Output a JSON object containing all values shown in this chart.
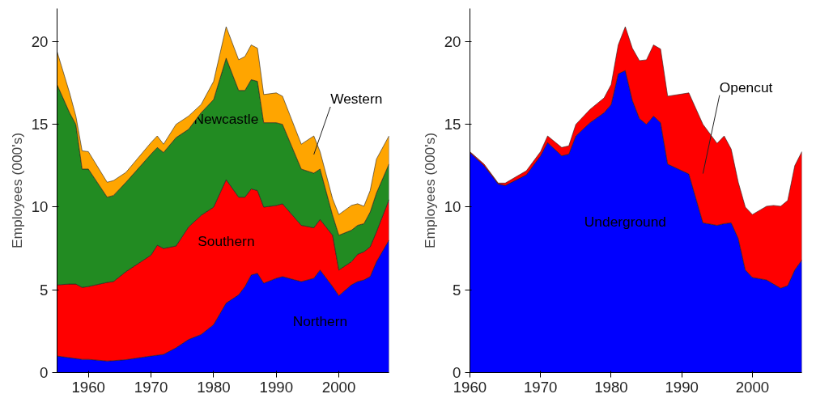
{
  "chart_data": [
    {
      "type": "area",
      "stacked": true,
      "ylabel": "Employees (000's)",
      "grid": false,
      "x": [
        1955,
        1957,
        1958,
        1959,
        1960,
        1963,
        1964,
        1966,
        1970,
        1971,
        1972,
        1974,
        1976,
        1978,
        1980,
        1982,
        1984,
        1985,
        1986,
        1987,
        1988,
        1990,
        1991,
        1994,
        1996,
        1997,
        1999,
        2000,
        2002,
        2003,
        2004,
        2005,
        2006,
        2008
      ],
      "xlim": [
        1955,
        2008
      ],
      "xticks": [
        1960,
        1970,
        1980,
        1990,
        2000
      ],
      "ylim": [
        0,
        22
      ],
      "yticks": [
        0,
        5,
        10,
        15,
        20
      ],
      "series": [
        {
          "name": "Northern",
          "color": "#0000ff",
          "values": [
            1.0,
            0.9,
            0.85,
            0.8,
            0.8,
            0.7,
            0.72,
            0.78,
            1.0,
            1.05,
            1.1,
            1.5,
            2.0,
            2.3,
            2.9,
            4.2,
            4.7,
            5.2,
            5.9,
            6.0,
            5.4,
            5.7,
            5.8,
            5.5,
            5.7,
            6.2,
            5.2,
            4.65,
            5.3,
            5.5,
            5.6,
            5.8,
            6.7,
            8.0
          ]
        },
        {
          "name": "Southern",
          "color": "#ff0000",
          "values": [
            4.3,
            4.45,
            4.5,
            4.35,
            4.4,
            4.75,
            4.78,
            5.32,
            6.1,
            6.65,
            6.4,
            6.15,
            6.8,
            7.2,
            7.1,
            7.46,
            5.9,
            5.4,
            5.2,
            5.0,
            4.6,
            4.4,
            4.4,
            3.4,
            3.05,
            3.05,
            3.1,
            1.55,
            1.4,
            1.65,
            1.7,
            1.8,
            1.8,
            2.45
          ]
        },
        {
          "name": "Newcastle",
          "color": "#228b22",
          "values": [
            12.1,
            10.35,
            9.65,
            7.15,
            7.1,
            5.15,
            5.2,
            5.4,
            6.1,
            5.9,
            5.8,
            6.55,
            5.9,
            6.2,
            6.5,
            7.34,
            6.45,
            6.45,
            6.6,
            6.6,
            5.1,
            5.0,
            4.8,
            3.4,
            3.3,
            3.05,
            1.2,
            2.1,
            1.9,
            1.75,
            1.7,
            2.1,
            2.35,
            2.15
          ]
        },
        {
          "name": "Western",
          "color": "#ffa500",
          "values": [
            2.0,
            1.2,
            0.5,
            1.1,
            1.05,
            0.9,
            0.9,
            0.6,
            0.7,
            0.7,
            0.5,
            0.8,
            0.8,
            0.5,
            1.1,
            1.9,
            1.85,
            2.05,
            2.1,
            2.0,
            1.7,
            1.8,
            1.7,
            1.5,
            2.25,
            1.05,
            1.0,
            1.25,
            1.5,
            1.3,
            1.05,
            1.3,
            2.05,
            1.7
          ]
        }
      ]
    },
    {
      "type": "area",
      "stacked": true,
      "ylabel": "Employees (000's)",
      "grid": false,
      "x": [
        1960,
        1962,
        1964,
        1965,
        1968,
        1970,
        1971,
        1973,
        1974,
        1975,
        1977,
        1979,
        1980,
        1981,
        1982,
        1983,
        1984,
        1985,
        1986,
        1987,
        1988,
        1991,
        1993,
        1995,
        1996,
        1997,
        1998,
        1999,
        2000,
        2002,
        2003,
        2004,
        2005,
        2006,
        2007
      ],
      "xlim": [
        1960,
        2007
      ],
      "xticks": [
        1960,
        1970,
        1980,
        1990,
        2000
      ],
      "ylim": [
        0,
        22
      ],
      "yticks": [
        0,
        5,
        10,
        15,
        20
      ],
      "series": [
        {
          "name": "Underground",
          "color": "#0000ff",
          "values": [
            13.3,
            12.5,
            11.4,
            11.3,
            11.95,
            13.1,
            13.9,
            13.1,
            13.2,
            14.3,
            15.1,
            15.7,
            16.2,
            18.05,
            18.25,
            16.45,
            15.35,
            15.0,
            15.5,
            15.1,
            12.6,
            12.0,
            9.05,
            8.9,
            9.0,
            9.05,
            8.1,
            6.2,
            5.75,
            5.6,
            5.35,
            5.1,
            5.25,
            6.2,
            6.8
          ]
        },
        {
          "name": "Opencut",
          "color": "#ff0000",
          "values": [
            0.05,
            0.1,
            0.05,
            0.15,
            0.25,
            0.25,
            0.4,
            0.5,
            0.5,
            0.7,
            0.8,
            0.9,
            1.2,
            1.75,
            2.65,
            3.15,
            3.5,
            3.9,
            4.3,
            4.45,
            4.1,
            4.9,
            5.95,
            4.95,
            5.3,
            4.45,
            3.4,
            3.8,
            3.8,
            4.45,
            4.75,
            4.95,
            5.15,
            6.3,
            6.55
          ]
        }
      ]
    }
  ]
}
